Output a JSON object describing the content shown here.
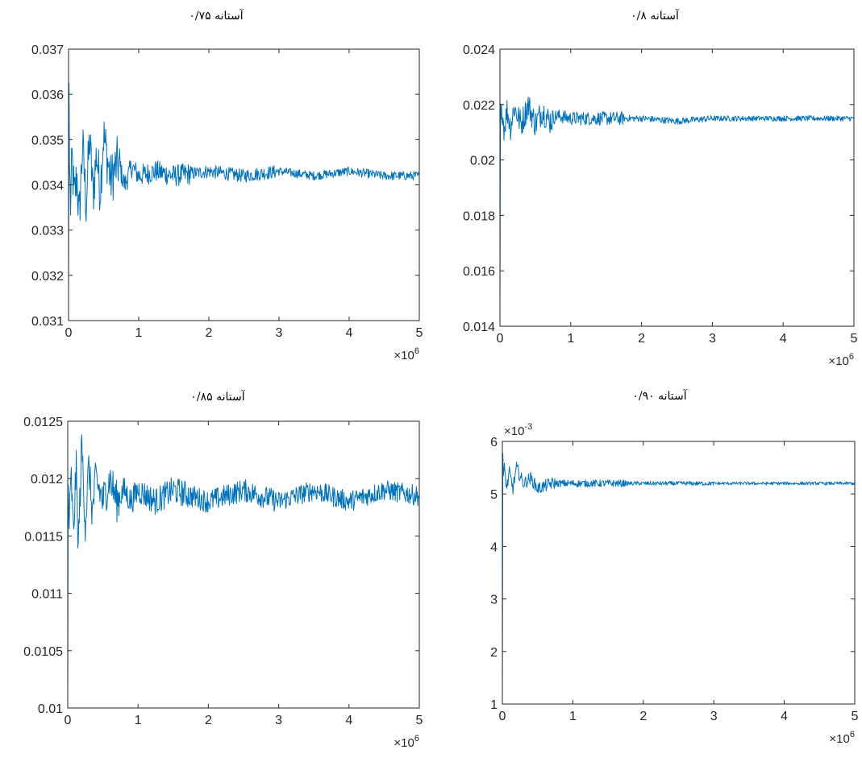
{
  "figure": {
    "x_multiplier_base": "×10",
    "x_multiplier_exp": "6"
  },
  "chart_data": [
    {
      "type": "line",
      "title": "آستانه ۰/۷۵",
      "xlabel": "",
      "ylabel": "",
      "xlim": [
        0,
        5000000
      ],
      "ylim": [
        0.031,
        0.037
      ],
      "x_ticks": [
        0,
        1000000,
        2000000,
        3000000,
        4000000,
        5000000
      ],
      "x_tick_labels": [
        "0",
        "1",
        "2",
        "3",
        "4",
        "5"
      ],
      "y_ticks": [
        0.031,
        0.032,
        0.033,
        0.034,
        0.035,
        0.036,
        0.037
      ],
      "y_tick_labels": [
        "0.031",
        "0.032",
        "0.033",
        "0.034",
        "0.035",
        "0.036",
        "0.037"
      ],
      "grid": false,
      "color": "#0072bd",
      "series": [
        {
          "x": [
            0,
            5000,
            15000,
            30000,
            50000,
            80000,
            120000,
            150000,
            200000,
            250000,
            300000,
            350000,
            400000,
            450000,
            500000,
            600000,
            700000,
            800000,
            900000,
            1000000,
            1250000,
            1500000,
            2000000,
            2500000,
            3000000,
            3500000,
            4000000,
            4500000,
            5000000
          ],
          "values": [
            0.0316,
            0.0368,
            0.0342,
            0.0335,
            0.0346,
            0.0337,
            0.0342,
            0.0332,
            0.0349,
            0.0336,
            0.035,
            0.0338,
            0.0347,
            0.0339,
            0.0351,
            0.0341,
            0.0345,
            0.034,
            0.0344,
            0.0342,
            0.0343,
            0.0342,
            0.0343,
            0.0342,
            0.0343,
            0.0342,
            0.0343,
            0.0342,
            0.0342
          ],
          "noise_amplitude": [
            0.0006,
            0.00025,
            0.00015,
            0.0001
          ]
        }
      ]
    },
    {
      "type": "line",
      "title": "آستانه ۰/۸",
      "xlabel": "",
      "ylabel": "",
      "xlim": [
        0,
        5000000
      ],
      "ylim": [
        0.014,
        0.024
      ],
      "x_ticks": [
        0,
        1000000,
        2000000,
        3000000,
        4000000,
        5000000
      ],
      "x_tick_labels": [
        "0",
        "1",
        "2",
        "3",
        "4",
        "5"
      ],
      "y_ticks": [
        0.014,
        0.016,
        0.018,
        0.02,
        0.022,
        0.024
      ],
      "y_tick_labels": [
        "0.014",
        "0.016",
        "0.018",
        "0.02",
        "0.022",
        "0.024"
      ],
      "grid": false,
      "color": "#0072bd",
      "series": [
        {
          "x": [
            0,
            5000,
            15000,
            30000,
            60000,
            100000,
            150000,
            200000,
            300000,
            400000,
            500000,
            600000,
            700000,
            800000,
            1000000,
            1500000,
            2000000,
            2500000,
            3000000,
            3500000,
            4000000,
            4500000,
            5000000
          ],
          "values": [
            0.014,
            0.0222,
            0.0214,
            0.0219,
            0.0211,
            0.0218,
            0.0212,
            0.0219,
            0.0213,
            0.022,
            0.0213,
            0.0218,
            0.0214,
            0.0216,
            0.0215,
            0.0215,
            0.0215,
            0.0214,
            0.0215,
            0.0215,
            0.0215,
            0.0215,
            0.0215
          ],
          "noise_amplitude": [
            0.0005,
            0.00025,
            0.00012,
            0.0001
          ]
        }
      ]
    },
    {
      "type": "line",
      "title": "آستانه ۰/۸۵",
      "xlabel": "",
      "ylabel": "",
      "xlim": [
        0,
        5000000
      ],
      "ylim": [
        0.01,
        0.0125
      ],
      "x_ticks": [
        0,
        1000000,
        2000000,
        3000000,
        4000000,
        5000000
      ],
      "x_tick_labels": [
        "0",
        "1",
        "2",
        "3",
        "4",
        "5"
      ],
      "y_ticks": [
        0.01,
        0.0105,
        0.011,
        0.0115,
        0.012,
        0.0125
      ],
      "y_tick_labels": [
        "0.01",
        "0.0105",
        "0.011",
        "0.0115",
        "0.012",
        "0.0125"
      ],
      "grid": false,
      "color": "#0072bd",
      "series": [
        {
          "x": [
            0,
            5000,
            20000,
            50000,
            80000,
            120000,
            150000,
            200000,
            250000,
            300000,
            350000,
            400000,
            500000,
            600000,
            700000,
            800000,
            900000,
            1000000,
            1250000,
            1500000,
            2000000,
            2500000,
            3000000,
            3500000,
            4000000,
            4500000,
            5000000
          ],
          "values": [
            0.01,
            0.012,
            0.0116,
            0.012,
            0.0115,
            0.0121,
            0.0114,
            0.0123,
            0.0116,
            0.0121,
            0.0117,
            0.012,
            0.0118,
            0.012,
            0.0118,
            0.0119,
            0.0118,
            0.0119,
            0.0118,
            0.0119,
            0.0118,
            0.0119,
            0.0118,
            0.0119,
            0.0118,
            0.0119,
            0.01185
          ],
          "noise_amplitude": [
            0.00018,
            0.00012,
            0.0001,
            9e-05
          ]
        }
      ]
    },
    {
      "type": "line",
      "title": "آستانه ۰/۹۰",
      "xlabel": "",
      "ylabel": "",
      "xlim": [
        0,
        5000000
      ],
      "ylim": [
        0.001,
        0.006
      ],
      "x_ticks": [
        0,
        1000000,
        2000000,
        3000000,
        4000000,
        5000000
      ],
      "x_tick_labels": [
        "0",
        "1",
        "2",
        "3",
        "4",
        "5"
      ],
      "y_ticks": [
        0.001,
        0.002,
        0.003,
        0.004,
        0.005,
        0.006
      ],
      "y_tick_labels": [
        "1",
        "2",
        "3",
        "4",
        "5",
        "6"
      ],
      "y_multiplier_base": "×10",
      "y_multiplier_exp": "-3",
      "grid": false,
      "color": "#0072bd",
      "series": [
        {
          "x": [
            0,
            5000,
            15000,
            30000,
            60000,
            100000,
            150000,
            200000,
            300000,
            400000,
            500000,
            700000,
            1000000,
            1500000,
            2000000,
            2500000,
            3000000,
            3500000,
            4000000,
            4500000,
            5000000
          ],
          "values": [
            0.001,
            0.0059,
            0.0053,
            0.0055,
            0.0051,
            0.0054,
            0.0051,
            0.0055,
            0.0052,
            0.0053,
            0.0051,
            0.0052,
            0.0052,
            0.0052,
            0.0052,
            0.0052,
            0.0052,
            0.0052,
            0.0052,
            0.0052,
            0.0052
          ],
          "noise_amplitude": [
            0.00012,
            7e-05,
            4e-05,
            3e-05
          ]
        }
      ]
    }
  ]
}
